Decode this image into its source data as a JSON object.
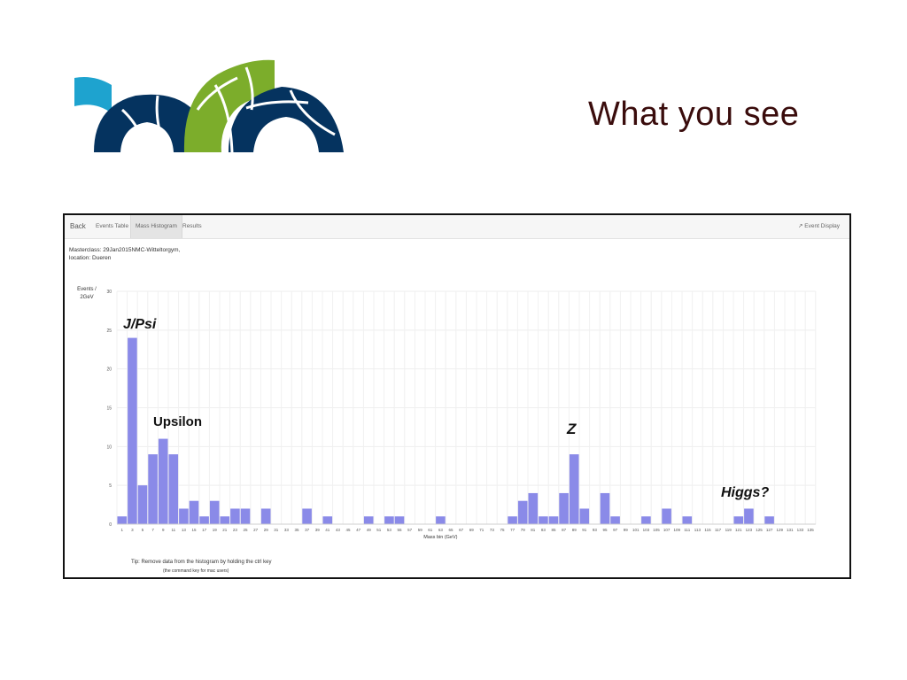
{
  "slide": {
    "title": "What you see"
  },
  "logo": {
    "colors": {
      "light_blue": "#1ea3cf",
      "navy": "#05335f",
      "green": "#7cad2b"
    }
  },
  "app": {
    "nav": {
      "back": "Back",
      "events_table": "Events Table",
      "mass_histogram": "Mass Histogram",
      "results": "Results",
      "event_display": "Event Display"
    },
    "masterclass_line": "Masterclass: 29Jan2015NMC-Witteltorgym,",
    "location_line": "location: Dueren",
    "tip_line1": "Tip: Remove data from the histogram by holding the ctrl key",
    "tip_line2": "(the command key for mac users)"
  },
  "annotations": {
    "jpsi": "J/Psi",
    "upsilon": "Upsilon",
    "z": "Z",
    "higgs": "Higgs?"
  },
  "chart_data": {
    "type": "bar",
    "xlabel": "Mass bin (GeV)",
    "ylabel_line1": "Events /",
    "ylabel_line2": "2GeV",
    "ylim": [
      0,
      30
    ],
    "yticks": [
      "0",
      "5",
      "10",
      "15",
      "20",
      "25",
      "30"
    ],
    "grid": true,
    "bar_color": "#8a8ae8",
    "categories": [
      "1",
      "3",
      "5",
      "7",
      "9",
      "11",
      "13",
      "15",
      "17",
      "19",
      "21",
      "23",
      "25",
      "27",
      "29",
      "31",
      "33",
      "35",
      "37",
      "39",
      "41",
      "43",
      "45",
      "47",
      "49",
      "51",
      "53",
      "55",
      "57",
      "59",
      "61",
      "63",
      "65",
      "67",
      "69",
      "71",
      "73",
      "75",
      "77",
      "79",
      "81",
      "83",
      "85",
      "87",
      "89",
      "91",
      "93",
      "95",
      "97",
      "99",
      "101",
      "103",
      "105",
      "107",
      "109",
      "111",
      "113",
      "115",
      "117",
      "119",
      "121",
      "123",
      "125",
      "127",
      "129",
      "131",
      "133",
      "135"
    ],
    "values": [
      1,
      24,
      5,
      9,
      11,
      9,
      2,
      3,
      1,
      3,
      1,
      2,
      2,
      0,
      2,
      0,
      0,
      0,
      2,
      0,
      1,
      0,
      0,
      0,
      1,
      0,
      1,
      1,
      0,
      0,
      0,
      1,
      0,
      0,
      0,
      0,
      0,
      0,
      1,
      3,
      4,
      1,
      1,
      4,
      9,
      2,
      0,
      4,
      1,
      0,
      0,
      1,
      0,
      2,
      0,
      1,
      0,
      0,
      0,
      0,
      1,
      2,
      0,
      1,
      0,
      0,
      0,
      0
    ],
    "xtick_labels": [
      "1",
      "3",
      "5",
      "7",
      "9",
      "11",
      "13",
      "15",
      "17",
      "19",
      "21",
      "23",
      "25",
      "27",
      "29",
      "31",
      "33",
      "35",
      "37",
      "39",
      "41",
      "43",
      "45",
      "47",
      "49",
      "51",
      "53",
      "55",
      "57",
      "59",
      "61",
      "63",
      "65",
      "67",
      "69",
      "71",
      "73",
      "75",
      "77",
      "79",
      "81",
      "83",
      "85",
      "87",
      "89",
      "91",
      "93",
      "95",
      "97",
      "99",
      "101",
      "103",
      "105",
      "107",
      "109",
      "111",
      "113",
      "115",
      "117",
      "119",
      "121",
      "123",
      "125",
      "127",
      "129",
      "131",
      "133",
      "135"
    ]
  }
}
